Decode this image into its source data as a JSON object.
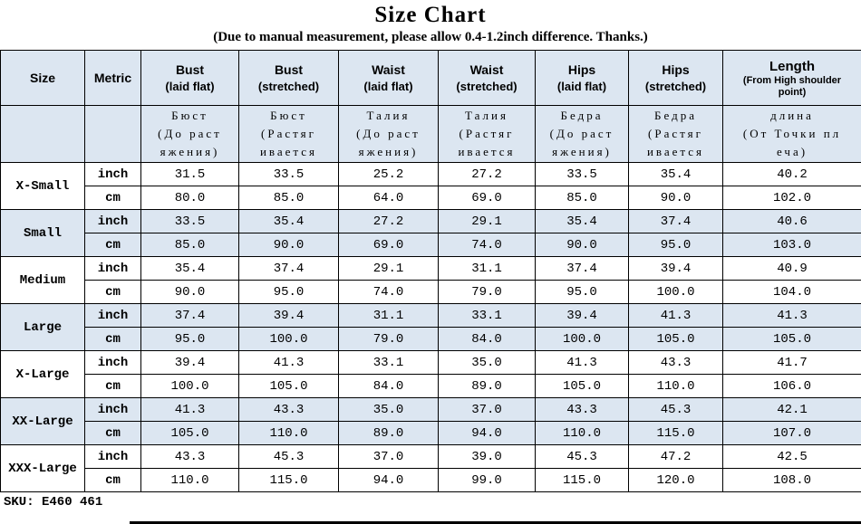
{
  "page": {
    "title": "Size Chart",
    "subtitle": "(Due to manual measurement, please allow 0.4-1.2inch difference. Thanks.)",
    "sku": "SKU: E460 461"
  },
  "colors": {
    "row_tint": "#dce6f1",
    "border": "#000000"
  },
  "chart_data": {
    "type": "table",
    "title": "Size Chart",
    "header_en": [
      {
        "key": "size",
        "lines": [
          "Size"
        ]
      },
      {
        "key": "metric",
        "lines": [
          "Metric"
        ]
      },
      {
        "key": "bust-laid-flat",
        "lines": [
          "Bust",
          "(laid flat)"
        ]
      },
      {
        "key": "bust-stretched",
        "lines": [
          "Bust",
          "(stretched)"
        ]
      },
      {
        "key": "waist-laid-flat",
        "lines": [
          "Waist",
          "(laid flat)"
        ]
      },
      {
        "key": "waist-stretched",
        "lines": [
          "Waist",
          "(stretched)"
        ]
      },
      {
        "key": "hips-laid-flat",
        "lines": [
          "Hips",
          "(laid flat)"
        ]
      },
      {
        "key": "hips-stretched",
        "lines": [
          "Hips",
          "(stretched)"
        ]
      },
      {
        "key": "length",
        "lines": [
          "Length",
          "(From High shoulder point)"
        ]
      }
    ],
    "header_ru": [
      {
        "key": "size",
        "lines": []
      },
      {
        "key": "metric",
        "lines": []
      },
      {
        "key": "bust-laid-flat",
        "lines": [
          "Бюст",
          "(До раст",
          "яжения)"
        ]
      },
      {
        "key": "bust-stretched",
        "lines": [
          "Бюст",
          "(Растяг",
          "ивается"
        ]
      },
      {
        "key": "waist-laid-flat",
        "lines": [
          "Талия",
          "(До раст",
          "яжения)"
        ]
      },
      {
        "key": "waist-stretched",
        "lines": [
          "Талия",
          "(Растяг",
          "ивается"
        ]
      },
      {
        "key": "hips-laid-flat",
        "lines": [
          "Бедра",
          "(До раст",
          "яжения)"
        ]
      },
      {
        "key": "hips-stretched",
        "lines": [
          "Бедра",
          "(Растяг",
          "ивается"
        ]
      },
      {
        "key": "length",
        "lines": [
          "длина",
          "(От Точки пл",
          "еча)"
        ]
      }
    ],
    "metric_labels": [
      "inch",
      "cm"
    ],
    "sizes": [
      {
        "label": "X-Small",
        "inch": [
          "31.5",
          "33.5",
          "25.2",
          "27.2",
          "33.5",
          "35.4",
          "40.2"
        ],
        "cm": [
          "80.0",
          "85.0",
          "64.0",
          "69.0",
          "85.0",
          "90.0",
          "102.0"
        ]
      },
      {
        "label": "Small",
        "inch": [
          "33.5",
          "35.4",
          "27.2",
          "29.1",
          "35.4",
          "37.4",
          "40.6"
        ],
        "cm": [
          "85.0",
          "90.0",
          "69.0",
          "74.0",
          "90.0",
          "95.0",
          "103.0"
        ]
      },
      {
        "label": "Medium",
        "inch": [
          "35.4",
          "37.4",
          "29.1",
          "31.1",
          "37.4",
          "39.4",
          "40.9"
        ],
        "cm": [
          "90.0",
          "95.0",
          "74.0",
          "79.0",
          "95.0",
          "100.0",
          "104.0"
        ]
      },
      {
        "label": "Large",
        "inch": [
          "37.4",
          "39.4",
          "31.1",
          "33.1",
          "39.4",
          "41.3",
          "41.3"
        ],
        "cm": [
          "95.0",
          "100.0",
          "79.0",
          "84.0",
          "100.0",
          "105.0",
          "105.0"
        ]
      },
      {
        "label": "X-Large",
        "inch": [
          "39.4",
          "41.3",
          "33.1",
          "35.0",
          "41.3",
          "43.3",
          "41.7"
        ],
        "cm": [
          "100.0",
          "105.0",
          "84.0",
          "89.0",
          "105.0",
          "110.0",
          "106.0"
        ]
      },
      {
        "label": "XX-Large",
        "inch": [
          "41.3",
          "43.3",
          "35.0",
          "37.0",
          "43.3",
          "45.3",
          "42.1"
        ],
        "cm": [
          "105.0",
          "110.0",
          "89.0",
          "94.0",
          "110.0",
          "115.0",
          "107.0"
        ]
      },
      {
        "label": "XXX-Large",
        "inch": [
          "43.3",
          "45.3",
          "37.0",
          "39.0",
          "45.3",
          "47.2",
          "42.5"
        ],
        "cm": [
          "110.0",
          "115.0",
          "94.0",
          "99.0",
          "115.0",
          "120.0",
          "108.0"
        ]
      }
    ]
  }
}
